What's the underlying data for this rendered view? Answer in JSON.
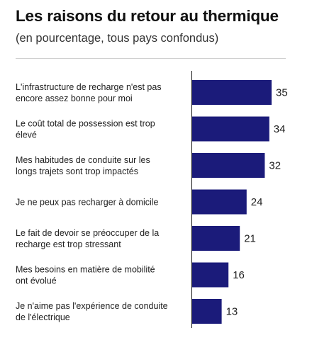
{
  "chart_data": {
    "type": "bar",
    "orientation": "horizontal",
    "title": "Les raisons du retour au thermique",
    "subtitle": "(en pourcentage, tous pays confondus)",
    "categories": [
      [
        "L'infrastructure de recharge n'est pas",
        "encore assez bonne pour moi"
      ],
      [
        "Le coût total de possession est trop",
        "élevé"
      ],
      [
        "Mes habitudes de conduite sur les",
        "longs trajets sont trop impactés"
      ],
      [
        "Je ne peux pas recharger à domicile"
      ],
      [
        "Le fait de devoir se préoccuper de la",
        "recharge est trop stressant"
      ],
      [
        "Mes besoins en matière de mobilité",
        "ont évolué"
      ],
      [
        "Je n'aime pas l'expérience de conduite",
        "de l'électrique"
      ]
    ],
    "values": [
      35,
      34,
      32,
      24,
      21,
      16,
      13
    ],
    "xlim": [
      0,
      35
    ],
    "bar_color": "#1b1b7a",
    "grid": false,
    "legend": "none"
  }
}
